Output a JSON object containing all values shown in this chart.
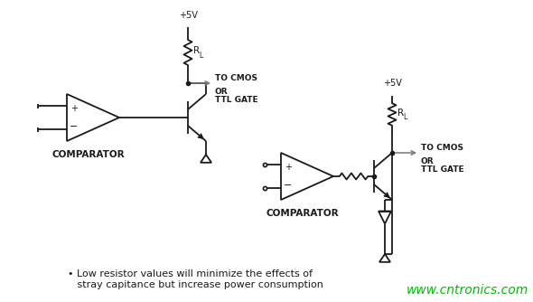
{
  "bg_color": "#ffffff",
  "line_color": "#1a1a1a",
  "gray_color": "#777777",
  "watermark_color": "#00bb00",
  "watermark": "www.cntronics.com",
  "note_text1": "• Low resistor values will minimize the effects of",
  "note_text2": "   stray capitance but increase power consumption",
  "fig_width": 5.9,
  "fig_height": 3.34,
  "dpi": 100
}
